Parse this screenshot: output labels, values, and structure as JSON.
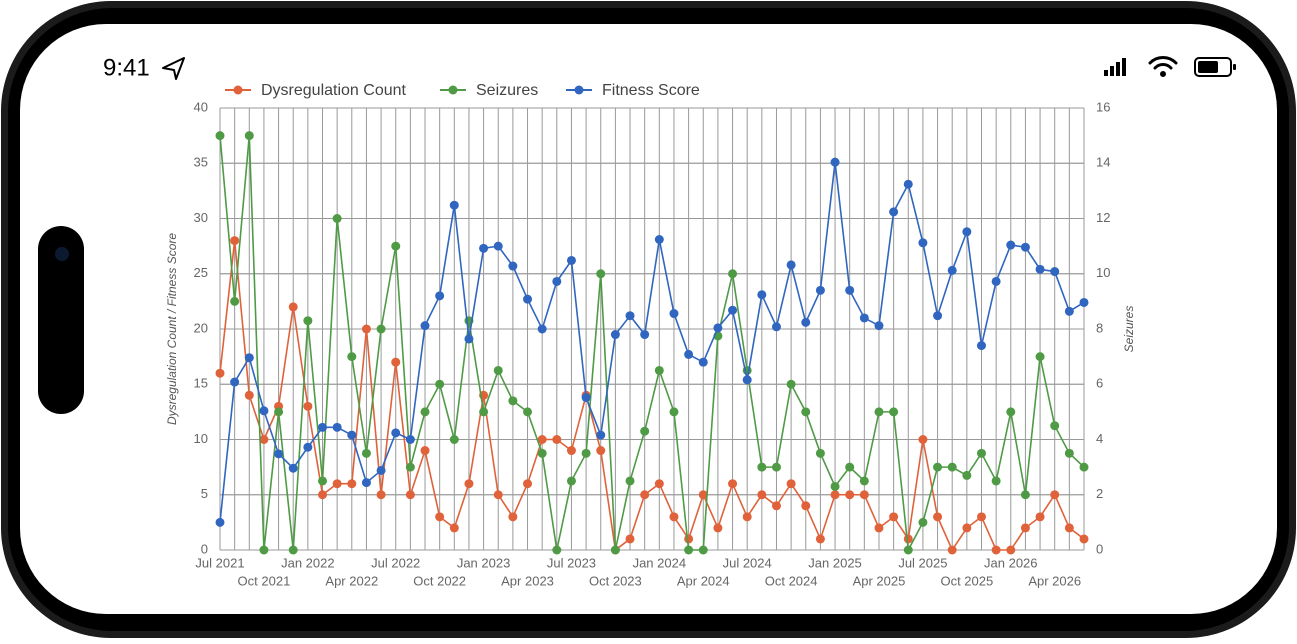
{
  "status_bar": {
    "time": "9:41"
  },
  "chart_data": {
    "type": "line",
    "y_label": "Dysregulation Count / Fitness Score",
    "y2_label": "Seizures",
    "categories": [
      "Jul 2021",
      null,
      null,
      "Oct 2021",
      null,
      null,
      "Jan 2022",
      null,
      null,
      "Apr 2022",
      null,
      null,
      "Jul 2022",
      null,
      null,
      "Oct 2022",
      null,
      null,
      "Jan 2023",
      null,
      null,
      "Apr 2023",
      null,
      null,
      "Jul 2023",
      null,
      null,
      "Oct 2023",
      null,
      null,
      "Jan 2024",
      null,
      null,
      "Apr 2024",
      null,
      null,
      "Jul 2024",
      null,
      null,
      "Oct 2024",
      null,
      null,
      "Jan 2025",
      null,
      null,
      "Apr 2025",
      null,
      null,
      "Jul 2025",
      null,
      null,
      "Oct 2025",
      null,
      null,
      "Jan 2026",
      null,
      null,
      "Apr 2026",
      null,
      null
    ],
    "series": [
      {
        "name": "Dysregulation Count",
        "color": "#e0623a",
        "axis": "y",
        "values": [
          16,
          28,
          14,
          10,
          13,
          22,
          13,
          5,
          6,
          6,
          20,
          5,
          17,
          5,
          9,
          3,
          2,
          6,
          14,
          5,
          3,
          6,
          10,
          10,
          9,
          14,
          9,
          0,
          1,
          5,
          6,
          3,
          1,
          5,
          2,
          6,
          3,
          5,
          4,
          6,
          4,
          1,
          5,
          5,
          5,
          2,
          3,
          1,
          10,
          3,
          0,
          2,
          3,
          0,
          0,
          2,
          3,
          5,
          2,
          1
        ]
      },
      {
        "name": "Seizures",
        "color": "#4f9a45",
        "axis": "y2",
        "values": [
          15,
          9,
          15,
          0,
          5,
          0,
          8.3,
          2.5,
          12,
          7,
          3.5,
          8,
          11,
          3,
          5,
          6,
          4,
          8.3,
          5,
          6.5,
          5.4,
          5,
          3.5,
          0,
          2.5,
          3.5,
          10,
          0,
          2.5,
          4.3,
          6.5,
          5,
          0,
          0,
          7.75,
          10,
          6.5,
          3,
          3,
          6,
          5,
          3.5,
          2.3,
          3,
          2.5,
          5,
          5,
          0,
          1,
          3,
          3,
          2.7,
          3.5,
          2.5,
          5,
          2,
          7,
          4.5,
          3.5,
          3
        ]
      },
      {
        "name": "Fitness Score",
        "color": "#3066c0",
        "axis": "y",
        "values": [
          2.5,
          15.2,
          17.4,
          12.6,
          8.7,
          7.4,
          9.3,
          11.1,
          11.1,
          10.4,
          6.1,
          7.2,
          10.6,
          10,
          20.3,
          23,
          31.2,
          19.1,
          27.3,
          27.5,
          25.7,
          22.7,
          20,
          24.3,
          26.2,
          13.8,
          10.4,
          19.5,
          21.2,
          19.5,
          28.1,
          21.4,
          17.7,
          17,
          20.1,
          21.7,
          15.4,
          23.1,
          20.2,
          25.8,
          20.6,
          23.5,
          35.1,
          23.5,
          21,
          20.3,
          30.6,
          33.1,
          27.8,
          21.2,
          25.3,
          28.8,
          18.5,
          24.3,
          27.6,
          27.4,
          25.4,
          25.2,
          21.6,
          22.4
        ]
      }
    ],
    "ylim": [
      0,
      40
    ],
    "yticks": [
      0,
      5,
      10,
      15,
      20,
      25,
      30,
      35,
      40
    ],
    "y2lim": [
      0,
      16
    ],
    "y2ticks": [
      0,
      2,
      4,
      6,
      8,
      10,
      12,
      14,
      16
    ],
    "grid": true,
    "legend": "top"
  }
}
